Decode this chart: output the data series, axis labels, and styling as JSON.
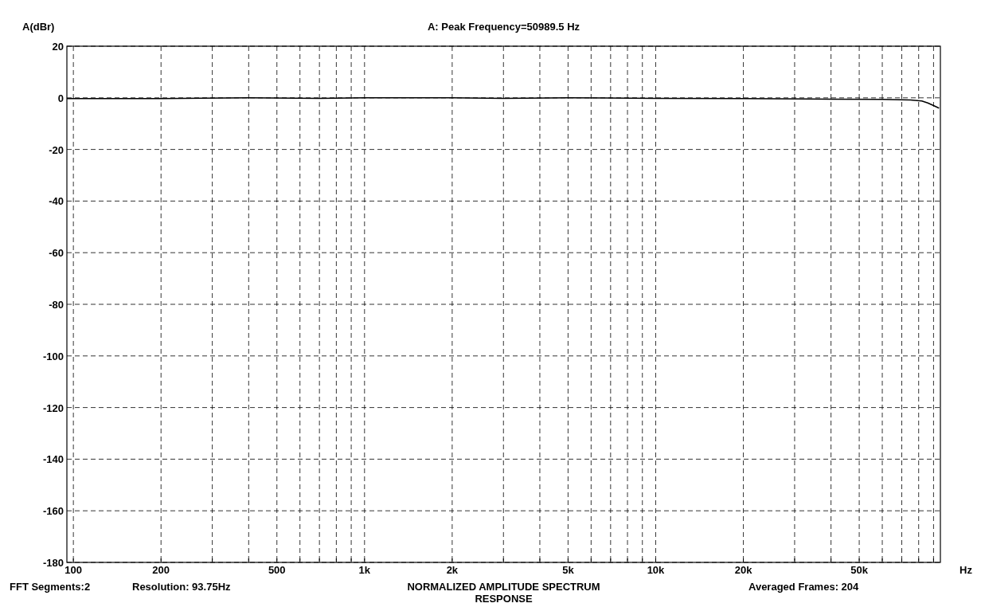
{
  "chart_data": {
    "type": "line",
    "title": "A: Peak Frequency=50989.5 Hz",
    "subtitle": "NORMALIZED AMPLITUDE SPECTRUM",
    "ylabel": "A(dBr)",
    "xlabel": "Hz",
    "annotations": [
      "FFT Segments:2",
      "Resolution: 93.75Hz",
      "Averaged Frames: 204",
      "RESPONSE"
    ],
    "log": "x",
    "grid": true,
    "line_style": "solid",
    "xlim": [
      95,
      95000
    ],
    "ylim": [
      -180,
      20
    ],
    "yticks": [
      -180,
      -160,
      -140,
      -120,
      -100,
      -80,
      -60,
      -40,
      -20,
      0,
      20
    ],
    "xticks": [
      100,
      {
        "value": 200,
        "label": "200"
      },
      {
        "value": 300,
        "label": null
      },
      {
        "value": 400,
        "label": null
      },
      500,
      {
        "value": 600,
        "label": null
      },
      {
        "value": 700,
        "label": null
      },
      {
        "value": 800,
        "label": null
      },
      {
        "value": 900,
        "label": null
      },
      {
        "value": 1000,
        "label": "1k"
      },
      {
        "value": 2000,
        "label": "2k"
      },
      {
        "value": 3000,
        "label": null
      },
      {
        "value": 4000,
        "label": null
      },
      {
        "value": 5000,
        "label": "5k"
      },
      {
        "value": 6000,
        "label": null
      },
      {
        "value": 7000,
        "label": null
      },
      {
        "value": 8000,
        "label": null
      },
      {
        "value": 9000,
        "label": null
      },
      {
        "value": 10000,
        "label": "10k"
      },
      {
        "value": 20000,
        "label": "20k"
      },
      {
        "value": 30000,
        "label": null
      },
      {
        "value": 40000,
        "label": null
      },
      {
        "value": 50000,
        "label": "50k"
      },
      {
        "value": 60000,
        "label": null
      },
      {
        "value": 70000,
        "label": null
      },
      {
        "value": 80000,
        "label": null
      },
      {
        "value": 90000,
        "label": null
      }
    ],
    "series": [
      {
        "color": "#000000",
        "x": [
          95,
          200,
          400,
          700,
          1000,
          2000,
          3000,
          5000,
          10000,
          20000,
          40000,
          60000,
          75000,
          82000,
          86000,
          90000,
          94000
        ],
        "values": [
          -0.3,
          -0.3,
          0,
          -0.2,
          0,
          0,
          -0.2,
          0,
          -0.2,
          -0.3,
          -0.5,
          -0.6,
          -0.8,
          -1.2,
          -2,
          -3,
          -4
        ]
      }
    ]
  }
}
